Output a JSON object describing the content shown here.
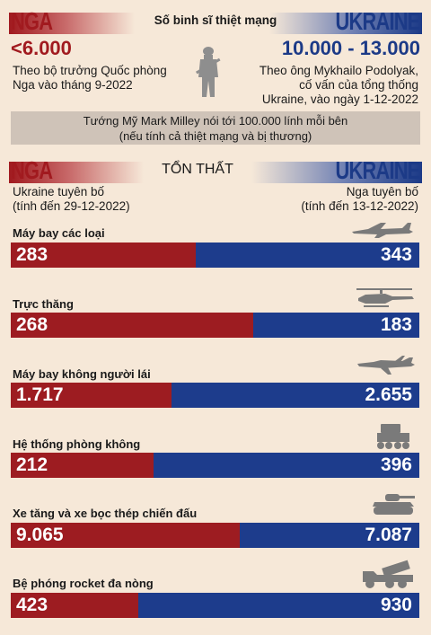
{
  "deaths": {
    "title": "Số binh sĩ thiệt mạng",
    "russia": {
      "label": "NGA",
      "value": "<6.000",
      "source": [
        "Theo bộ trưởng Quốc phòng",
        "Nga vào tháng 9-2022"
      ]
    },
    "ukraine": {
      "label": "UKRAINE",
      "value": "10.000 - 13.000",
      "source": [
        "Theo ông Mykhailo Podolyak,",
        "cố vấn của tổng thống",
        "Ukraine, vào ngày 1-12-2022"
      ]
    },
    "note": [
      "Tướng Mỹ Mark Milley nói tới 100.000 lính mỗi bên",
      "(nếu tính cả thiệt mạng và bị thương)"
    ]
  },
  "losses": {
    "title": "TỔN THẤT",
    "russia": {
      "label": "NGA",
      "source": [
        "Ukraine tuyên bố",
        "(tính đến 29-12-2022)"
      ]
    },
    "ukraine": {
      "label": "UKRAINE",
      "source": [
        "Nga tuyên bố",
        "(tính đến 13-12-2022)"
      ]
    }
  },
  "colors": {
    "russia": "#9d1c21",
    "ukraine": "#1d3c8c",
    "background": "#f6e8d8"
  },
  "icons": [
    "soldier-icon",
    "jet-icon",
    "helicopter-icon",
    "drone-icon",
    "air-defense-icon",
    "tank-icon",
    "rocket-launcher-icon"
  ],
  "chart_data": {
    "type": "bar",
    "stacked": true,
    "orientation": "horizontal",
    "categories": [
      "Máy bay các loại",
      "Trực thăng",
      "Máy bay không người lái",
      "Hệ thống phòng không",
      "Xe tăng và xe bọc thép chiến đấu",
      "Bệ phóng rocket đa nòng"
    ],
    "series": [
      {
        "name": "NGA",
        "values": [
          283,
          268,
          1717,
          212,
          9065,
          423
        ],
        "labels": [
          "283",
          "268",
          "1.717",
          "212",
          "9.065",
          "423"
        ]
      },
      {
        "name": "UKRAINE",
        "values": [
          343,
          183,
          2655,
          396,
          7087,
          930
        ],
        "labels": [
          "343",
          "183",
          "2.655",
          "396",
          "7.087",
          "930"
        ]
      }
    ]
  }
}
